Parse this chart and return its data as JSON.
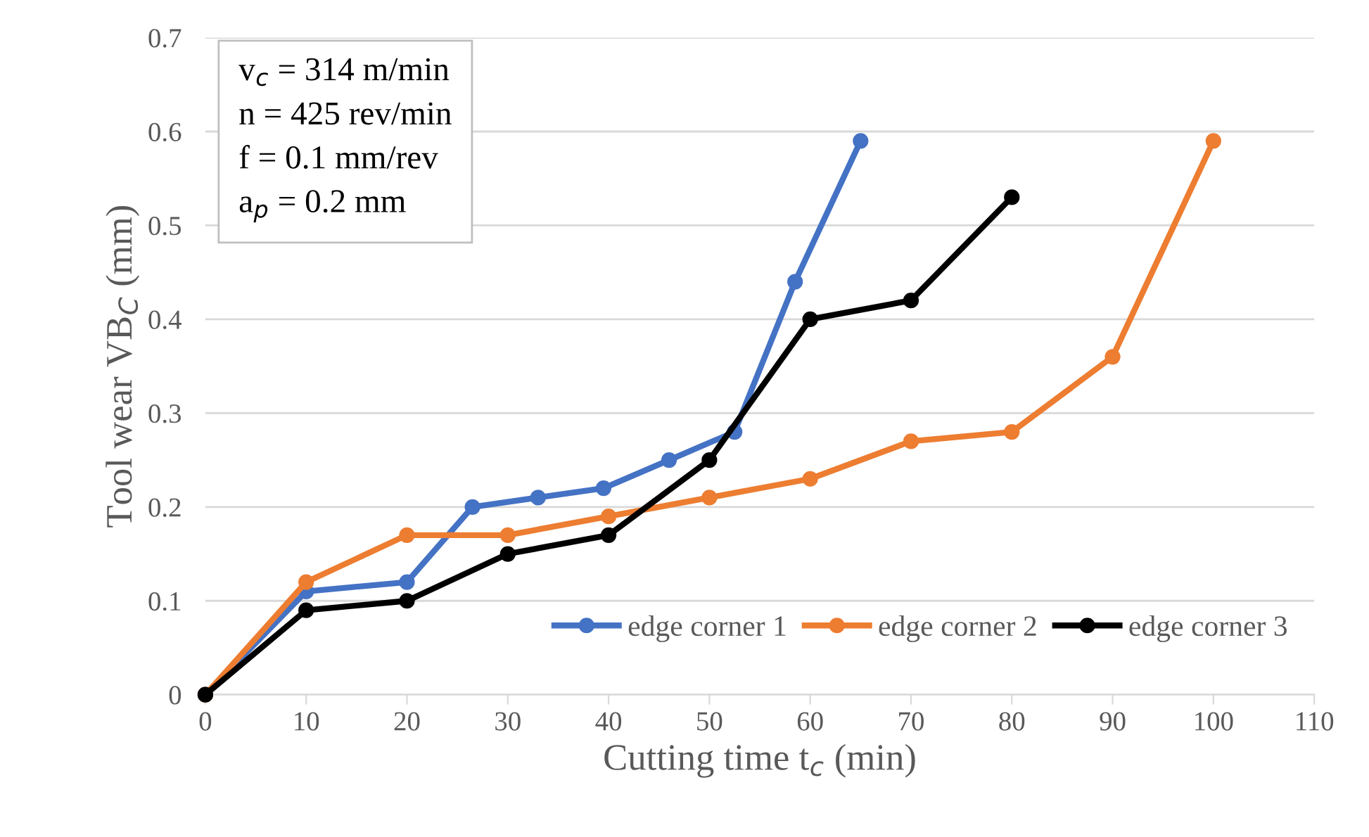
{
  "chart_data": {
    "type": "line",
    "xlabel": "Cutting time t$_{c}$ (min)",
    "ylabel": "Tool wear VB$_{C}$ (mm)",
    "annotations": [
      "v$_{c}$ = 314 m/min\nn = 425 rev/min\nf = 0.1 mm/rev\na$_{p}$ = 0.2 mm"
    ],
    "xlim": [
      0,
      110
    ],
    "xticks": [
      0,
      10,
      20,
      30,
      40,
      50,
      60,
      70,
      80,
      90,
      100,
      110
    ],
    "ylim": [
      0,
      0.7
    ],
    "yticks": [
      0,
      0.1,
      0.2,
      0.3,
      0.4,
      0.5,
      0.6,
      0.7
    ],
    "grid": "y",
    "legend": "bottom right",
    "marker": "circle",
    "line_style": "solid",
    "series": [
      {
        "name": "edge corner 1",
        "color": "#4472c4",
        "x": [
          0,
          10,
          20,
          26.5,
          33,
          39.5,
          46,
          52.5,
          58.5,
          65
        ],
        "values": [
          0,
          0.11,
          0.12,
          0.2,
          0.21,
          0.22,
          0.25,
          0.28,
          0.44,
          0.59
        ]
      },
      {
        "name": "edge corner 2",
        "color": "#ed7d31",
        "x": [
          0,
          10,
          20,
          30,
          40,
          50,
          60,
          70,
          80,
          90,
          100
        ],
        "values": [
          0,
          0.12,
          0.17,
          0.17,
          0.19,
          0.21,
          0.23,
          0.27,
          0.28,
          0.36,
          0.59
        ]
      },
      {
        "name": "edge corner 3",
        "color": "#000000",
        "x": [
          0,
          10,
          20,
          30,
          40,
          50,
          60,
          70,
          80
        ],
        "values": [
          0,
          0.09,
          0.1,
          0.15,
          0.17,
          0.25,
          0.4,
          0.42,
          0.53
        ]
      }
    ]
  }
}
